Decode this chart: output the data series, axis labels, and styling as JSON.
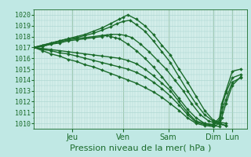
{
  "bg_color": "#c0e8e4",
  "grid_color": "#a8d4ce",
  "line_color": "#1a6b2a",
  "marker_color": "#1a6b2a",
  "xlabel_text": "Pression niveau de la mer( hPa )",
  "ylim": [
    1009.5,
    1020.5
  ],
  "yticks": [
    1010,
    1011,
    1012,
    1013,
    1014,
    1015,
    1016,
    1017,
    1018,
    1019,
    1020
  ],
  "day_labels": [
    "Jeu",
    "Ven",
    "Sam",
    "Dim",
    "Lun"
  ],
  "day_positions": [
    0.18,
    0.42,
    0.63,
    0.84,
    0.93
  ],
  "lines": [
    {
      "x": [
        0.0,
        0.04,
        0.08,
        0.12,
        0.16,
        0.2,
        0.24,
        0.28,
        0.32,
        0.36,
        0.4,
        0.42,
        0.44,
        0.48,
        0.52,
        0.56,
        0.6,
        0.64,
        0.68,
        0.72,
        0.76,
        0.8,
        0.84,
        0.87,
        0.9
      ],
      "y": [
        1017.0,
        1017.2,
        1017.4,
        1017.6,
        1017.8,
        1018.0,
        1018.2,
        1018.5,
        1018.8,
        1019.2,
        1019.6,
        1019.8,
        1020.0,
        1019.6,
        1019.0,
        1018.2,
        1017.2,
        1016.3,
        1015.0,
        1013.8,
        1012.5,
        1011.2,
        1010.3,
        1010.1,
        1010.0
      ],
      "ms": 2.0,
      "lw": 1.0
    },
    {
      "x": [
        0.0,
        0.04,
        0.08,
        0.12,
        0.16,
        0.2,
        0.24,
        0.28,
        0.32,
        0.36,
        0.39,
        0.42,
        0.45,
        0.48,
        0.52,
        0.56,
        0.6,
        0.64,
        0.68,
        0.72,
        0.76,
        0.8,
        0.84,
        0.87,
        0.9
      ],
      "y": [
        1017.0,
        1017.2,
        1017.4,
        1017.6,
        1017.8,
        1017.9,
        1018.1,
        1018.3,
        1018.6,
        1018.9,
        1019.2,
        1019.4,
        1019.5,
        1019.1,
        1018.5,
        1017.6,
        1016.6,
        1015.6,
        1014.3,
        1013.0,
        1011.8,
        1010.8,
        1010.2,
        1010.0,
        1009.8
      ],
      "ms": 2.0,
      "lw": 1.0
    },
    {
      "x": [
        0.0,
        0.04,
        0.08,
        0.12,
        0.16,
        0.2,
        0.24,
        0.28,
        0.32,
        0.36,
        0.4,
        0.43,
        0.46,
        0.5,
        0.54,
        0.58,
        0.62,
        0.66,
        0.7,
        0.74,
        0.78,
        0.82,
        0.84,
        0.87,
        0.9
      ],
      "y": [
        1017.0,
        1017.1,
        1017.3,
        1017.5,
        1017.7,
        1017.8,
        1017.9,
        1018.0,
        1018.1,
        1018.2,
        1018.2,
        1018.1,
        1017.9,
        1017.3,
        1016.6,
        1015.8,
        1015.0,
        1014.0,
        1013.0,
        1011.8,
        1010.8,
        1010.2,
        1010.1,
        1009.9,
        1009.8
      ],
      "ms": 2.0,
      "lw": 1.0
    },
    {
      "x": [
        0.0,
        0.04,
        0.08,
        0.12,
        0.16,
        0.2,
        0.24,
        0.28,
        0.32,
        0.36,
        0.4,
        0.44,
        0.48,
        0.52,
        0.56,
        0.6,
        0.64,
        0.68,
        0.72,
        0.76,
        0.8,
        0.84,
        0.87,
        0.88,
        0.9,
        0.93,
        0.97
      ],
      "y": [
        1017.0,
        1016.9,
        1016.8,
        1016.7,
        1016.6,
        1016.5,
        1016.4,
        1016.3,
        1016.2,
        1016.1,
        1016.0,
        1015.8,
        1015.5,
        1015.0,
        1014.4,
        1013.7,
        1013.0,
        1012.0,
        1011.0,
        1010.2,
        1010.0,
        1009.9,
        1010.5,
        1011.8,
        1013.0,
        1014.8,
        1015.0
      ],
      "ms": 2.0,
      "lw": 1.0
    },
    {
      "x": [
        0.0,
        0.04,
        0.08,
        0.12,
        0.16,
        0.2,
        0.24,
        0.28,
        0.32,
        0.36,
        0.4,
        0.44,
        0.48,
        0.52,
        0.56,
        0.6,
        0.64,
        0.68,
        0.72,
        0.76,
        0.8,
        0.84,
        0.87,
        0.88,
        0.9,
        0.93,
        0.97
      ],
      "y": [
        1017.0,
        1016.8,
        1016.7,
        1016.5,
        1016.4,
        1016.2,
        1016.0,
        1015.8,
        1015.6,
        1015.4,
        1015.2,
        1015.0,
        1014.7,
        1014.3,
        1013.8,
        1013.2,
        1012.5,
        1011.7,
        1010.8,
        1010.1,
        1009.9,
        1009.8,
        1010.3,
        1011.5,
        1012.8,
        1014.2,
        1014.5
      ],
      "ms": 2.0,
      "lw": 1.0
    },
    {
      "x": [
        0.0,
        0.04,
        0.08,
        0.12,
        0.16,
        0.2,
        0.24,
        0.28,
        0.32,
        0.36,
        0.4,
        0.44,
        0.48,
        0.52,
        0.56,
        0.6,
        0.64,
        0.68,
        0.72,
        0.76,
        0.8,
        0.84,
        0.87,
        0.88,
        0.9,
        0.93,
        0.97
      ],
      "y": [
        1017.0,
        1016.7,
        1016.4,
        1016.2,
        1015.9,
        1015.7,
        1015.4,
        1015.2,
        1014.9,
        1014.6,
        1014.3,
        1014.0,
        1013.7,
        1013.3,
        1012.9,
        1012.4,
        1011.8,
        1011.2,
        1010.5,
        1010.0,
        1009.8,
        1009.7,
        1010.0,
        1011.0,
        1012.2,
        1013.8,
        1014.2
      ],
      "ms": 2.0,
      "lw": 1.0
    },
    {
      "x": [
        0.0,
        0.04,
        0.08,
        0.12,
        0.16,
        0.2,
        0.24,
        0.28,
        0.32,
        0.34,
        0.36,
        0.38,
        0.4,
        0.44,
        0.48,
        0.52,
        0.56,
        0.6,
        0.64,
        0.68,
        0.72,
        0.76,
        0.8,
        0.84,
        0.87,
        0.88,
        0.9,
        0.93,
        0.97
      ],
      "y": [
        1017.0,
        1017.1,
        1017.3,
        1017.4,
        1017.6,
        1017.7,
        1017.8,
        1017.9,
        1018.0,
        1018.1,
        1018.0,
        1017.9,
        1017.8,
        1017.3,
        1016.7,
        1016.0,
        1015.2,
        1014.3,
        1013.3,
        1012.3,
        1011.3,
        1010.5,
        1010.0,
        1009.8,
        1009.7,
        1010.5,
        1011.8,
        1013.5,
        1014.3
      ],
      "ms": 2.0,
      "lw": 1.0
    }
  ],
  "xlim": [
    0.0,
    1.0
  ],
  "tick_label_color": "#1a6b2a",
  "tick_label_fontsize": 6,
  "xlabel_fontsize": 8,
  "day_tick_fontsize": 7,
  "plot_bg": "#d4eeea",
  "num_vgrid": 80
}
